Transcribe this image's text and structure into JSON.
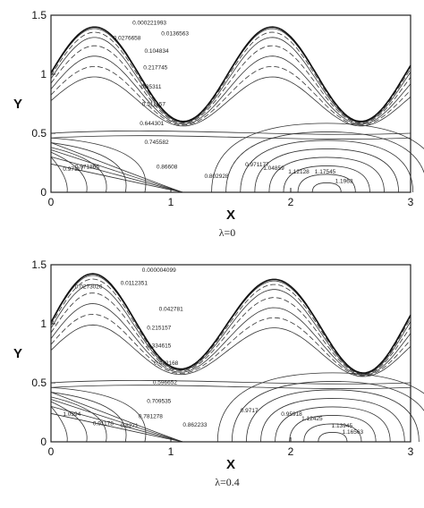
{
  "chart_data": [
    {
      "type": "contour",
      "xlabel": "X",
      "ylabel": "Y",
      "caption": "λ=0",
      "xlim": [
        0,
        3
      ],
      "ylim": [
        0,
        1.5
      ],
      "xticks": [
        "0",
        "1",
        "2",
        "3"
      ],
      "yticks": [
        "0",
        "0.5",
        "1",
        "1.5"
      ],
      "grid": false,
      "contour_labels": [
        "0.000221993",
        "0.0136563",
        "0.0276658",
        "0.104834",
        "0.217745",
        "0.35311",
        "0.511157",
        "0.644301",
        "0.745582",
        "0.86608",
        "0.802928",
        "0.971177",
        "1.04859",
        "1.12128",
        "1.17545",
        "1.1963",
        "0.97117",
        "0.971865"
      ]
    },
    {
      "type": "contour",
      "xlabel": "X",
      "ylabel": "Y",
      "caption": "λ=0.4",
      "xlim": [
        0,
        3
      ],
      "ylim": [
        0,
        1.5
      ],
      "xticks": [
        "0",
        "1",
        "2",
        "3"
      ],
      "yticks": [
        "0",
        "0.5",
        "1",
        "1.5"
      ],
      "grid": false,
      "contour_labels": [
        "0.000004099",
        "0.0273026",
        "0.0112351",
        "0.042781",
        "0.215157",
        "0.334615",
        "0.472168",
        "0.596652",
        "0.709535",
        "0.781278",
        "0.862233",
        "0.9717",
        "0.95918",
        "1.12425",
        "1.13945",
        "1.16563",
        "1.0594",
        "0.8271",
        "0.91178"
      ]
    }
  ]
}
